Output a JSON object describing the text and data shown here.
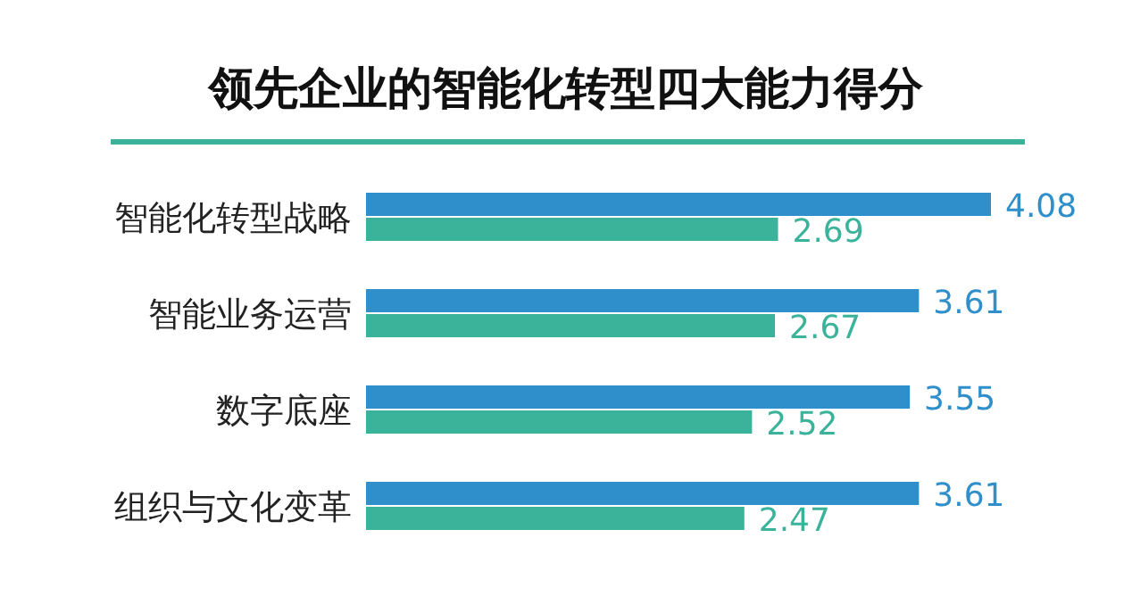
{
  "chart_data": {
    "type": "bar",
    "orientation": "horizontal",
    "title": "领先企业的智能化转型四大能力得分",
    "categories": [
      "智能化转型战略",
      "智能业务运营",
      "数字底座",
      "组织与文化变革"
    ],
    "series": [
      {
        "color": "#2e8fcb",
        "values": [
          4.08,
          3.61,
          3.55,
          3.61
        ]
      },
      {
        "color": "#3bb39b",
        "values": [
          2.69,
          2.67,
          2.52,
          2.47
        ]
      }
    ],
    "data_labels": true
  }
}
